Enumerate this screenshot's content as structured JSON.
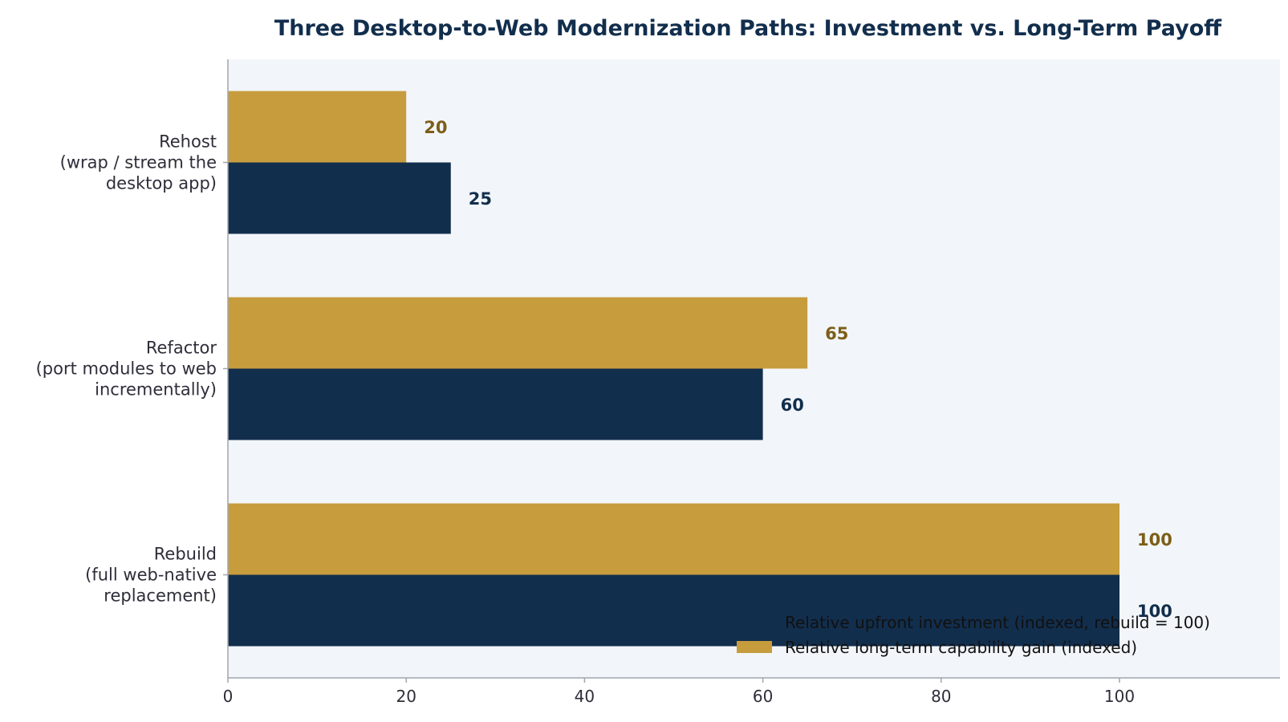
{
  "chart_data": {
    "type": "bar",
    "orientation": "horizontal",
    "title": "Three Desktop-to-Web Modernization Paths: Investment vs. Long-Term Payoff",
    "xlabel": "",
    "ylabel": "",
    "xlim": [
      0,
      118
    ],
    "xticks": [
      0,
      20,
      40,
      60,
      80,
      100
    ],
    "grid": false,
    "legend_position": "bottom-right",
    "categories": [
      [
        "Rehost",
        "(wrap / stream the",
        "desktop app)"
      ],
      [
        "Refactor",
        "(port modules to web",
        "incrementally)"
      ],
      [
        "Rebuild",
        "(full web-native",
        "replacement)"
      ]
    ],
    "series": [
      {
        "name": "Relative long-term capability gain (indexed)",
        "color": "#c79c3d",
        "label_color": "#7d5e19",
        "values": [
          20,
          65,
          100
        ]
      },
      {
        "name": "Relative upfront investment (indexed, rebuild = 100)",
        "color": "#122e4d",
        "label_color": "#122e4d",
        "values": [
          25,
          60,
          100
        ]
      }
    ],
    "colors": {
      "title": "#122e4d",
      "plot_background": "#f2f6fa",
      "axis": "#a0a6ad"
    }
  }
}
